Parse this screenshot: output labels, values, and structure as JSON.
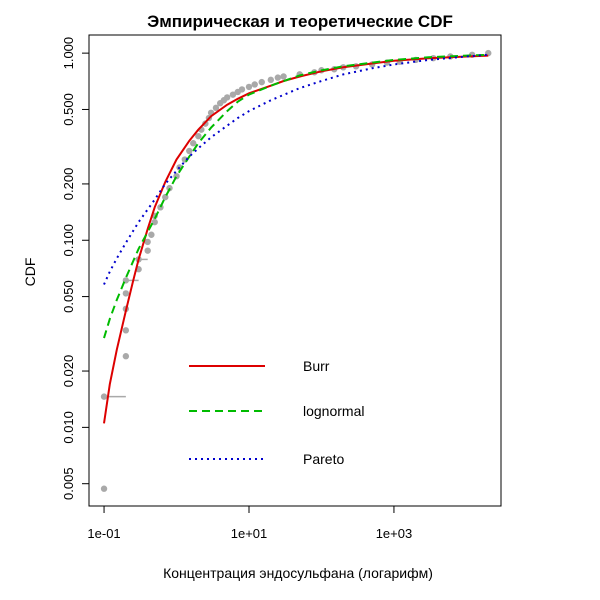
{
  "chart_data": {
    "type": "scatter",
    "title": "Эмпирическая и теоретические CDF",
    "xlabel": "Концентрация эндосульфана (логарифм)",
    "ylabel": "CDF",
    "x_scale": "log10",
    "y_scale": "log10",
    "xlim": [
      0.062,
      30000
    ],
    "ylim": [
      0.0038,
      1.25
    ],
    "x_ticks": [
      {
        "value": 0.1,
        "label": "1e-01"
      },
      {
        "value": 10,
        "label": "1e+01"
      },
      {
        "value": 1000,
        "label": "1e+03"
      }
    ],
    "y_ticks": [
      {
        "value": 0.005,
        "label": "0.005"
      },
      {
        "value": 0.01,
        "label": "0.010"
      },
      {
        "value": 0.02,
        "label": "0.020"
      },
      {
        "value": 0.05,
        "label": "0.050"
      },
      {
        "value": 0.1,
        "label": "0.100"
      },
      {
        "value": 0.2,
        "label": "0.200"
      },
      {
        "value": 0.5,
        "label": "0.500"
      },
      {
        "value": 1.0,
        "label": "1.000"
      }
    ],
    "grid": false,
    "legend_position": "bottom-center",
    "empirical": {
      "color": "#a9a9a9",
      "points": [
        [
          0.1,
          0.0047
        ],
        [
          0.1,
          0.0146
        ],
        [
          0.2,
          0.024
        ],
        [
          0.2,
          0.033
        ],
        [
          0.2,
          0.043
        ],
        [
          0.2,
          0.052
        ],
        [
          0.2,
          0.061
        ],
        [
          0.3,
          0.07
        ],
        [
          0.3,
          0.079
        ],
        [
          0.4,
          0.088
        ],
        [
          0.4,
          0.098
        ],
        [
          0.45,
          0.107
        ],
        [
          0.5,
          0.125
        ],
        [
          0.5,
          0.135
        ],
        [
          0.6,
          0.15
        ],
        [
          0.7,
          0.17
        ],
        [
          0.8,
          0.19
        ],
        [
          1.0,
          0.22
        ],
        [
          1.1,
          0.245
        ],
        [
          1.3,
          0.27
        ],
        [
          1.5,
          0.3
        ],
        [
          1.7,
          0.33
        ],
        [
          2.0,
          0.36
        ],
        [
          2.2,
          0.39
        ],
        [
          2.5,
          0.42
        ],
        [
          2.8,
          0.45
        ],
        [
          3.0,
          0.48
        ],
        [
          3.5,
          0.51
        ],
        [
          4.0,
          0.54
        ],
        [
          4.5,
          0.56
        ],
        [
          5.0,
          0.58
        ],
        [
          6.0,
          0.6
        ],
        [
          7.0,
          0.62
        ],
        [
          8.0,
          0.64
        ],
        [
          10,
          0.66
        ],
        [
          12,
          0.68
        ],
        [
          15,
          0.7
        ],
        [
          20,
          0.72
        ],
        [
          25,
          0.74
        ],
        [
          30,
          0.75
        ],
        [
          50,
          0.77
        ],
        [
          80,
          0.79
        ],
        [
          100,
          0.81
        ],
        [
          150,
          0.82
        ],
        [
          200,
          0.84
        ],
        [
          300,
          0.85
        ],
        [
          500,
          0.87
        ],
        [
          800,
          0.89
        ],
        [
          1200,
          0.9
        ],
        [
          2000,
          0.92
        ],
        [
          3500,
          0.94
        ],
        [
          6000,
          0.96
        ],
        [
          12000,
          0.98
        ],
        [
          20000,
          1.0
        ]
      ],
      "step_bars": [
        [
          0.1,
          0.2,
          0.0146
        ],
        [
          0.2,
          0.3,
          0.061
        ],
        [
          0.3,
          0.4,
          0.079
        ]
      ]
    },
    "series": [
      {
        "name": "Burr",
        "color": "#dd0000",
        "style": "solid",
        "points": [
          [
            0.1,
            0.0105
          ],
          [
            0.12,
            0.017
          ],
          [
            0.15,
            0.026
          ],
          [
            0.2,
            0.042
          ],
          [
            0.25,
            0.06
          ],
          [
            0.3,
            0.079
          ],
          [
            0.4,
            0.115
          ],
          [
            0.5,
            0.15
          ],
          [
            0.7,
            0.205
          ],
          [
            1.0,
            0.27
          ],
          [
            1.5,
            0.34
          ],
          [
            2.0,
            0.39
          ],
          [
            3.0,
            0.46
          ],
          [
            5.0,
            0.53
          ],
          [
            7.0,
            0.57
          ],
          [
            10,
            0.61
          ],
          [
            20,
            0.67
          ],
          [
            30,
            0.71
          ],
          [
            50,
            0.75
          ],
          [
            100,
            0.8
          ],
          [
            200,
            0.84
          ],
          [
            500,
            0.88
          ],
          [
            1000,
            0.91
          ],
          [
            3000,
            0.94
          ],
          [
            10000,
            0.96
          ],
          [
            20000,
            0.97
          ]
        ]
      },
      {
        "name": "lognormal",
        "color": "#00bb00",
        "style": "dashed",
        "points": [
          [
            0.1,
            0.03
          ],
          [
            0.12,
            0.038
          ],
          [
            0.15,
            0.048
          ],
          [
            0.2,
            0.063
          ],
          [
            0.3,
            0.09
          ],
          [
            0.5,
            0.13
          ],
          [
            0.7,
            0.17
          ],
          [
            1.0,
            0.22
          ],
          [
            1.5,
            0.28
          ],
          [
            2.0,
            0.33
          ],
          [
            3.0,
            0.4
          ],
          [
            5.0,
            0.49
          ],
          [
            7.0,
            0.55
          ],
          [
            10,
            0.6
          ],
          [
            20,
            0.67
          ],
          [
            50,
            0.76
          ],
          [
            100,
            0.81
          ],
          [
            200,
            0.85
          ],
          [
            500,
            0.89
          ],
          [
            1000,
            0.92
          ],
          [
            3000,
            0.95
          ],
          [
            10000,
            0.97
          ],
          [
            20000,
            0.98
          ]
        ]
      },
      {
        "name": "Pareto",
        "color": "#0000cc",
        "style": "dotted",
        "points": [
          [
            0.1,
            0.058
          ],
          [
            0.12,
            0.068
          ],
          [
            0.15,
            0.08
          ],
          [
            0.2,
            0.097
          ],
          [
            0.3,
            0.125
          ],
          [
            0.5,
            0.165
          ],
          [
            0.7,
            0.2
          ],
          [
            1.0,
            0.235
          ],
          [
            1.5,
            0.28
          ],
          [
            2.0,
            0.31
          ],
          [
            3.0,
            0.355
          ],
          [
            5.0,
            0.41
          ],
          [
            7.0,
            0.45
          ],
          [
            10,
            0.49
          ],
          [
            20,
            0.56
          ],
          [
            50,
            0.65
          ],
          [
            100,
            0.71
          ],
          [
            200,
            0.77
          ],
          [
            500,
            0.83
          ],
          [
            1000,
            0.87
          ],
          [
            3000,
            0.92
          ],
          [
            10000,
            0.96
          ],
          [
            20000,
            0.98
          ]
        ]
      }
    ]
  }
}
